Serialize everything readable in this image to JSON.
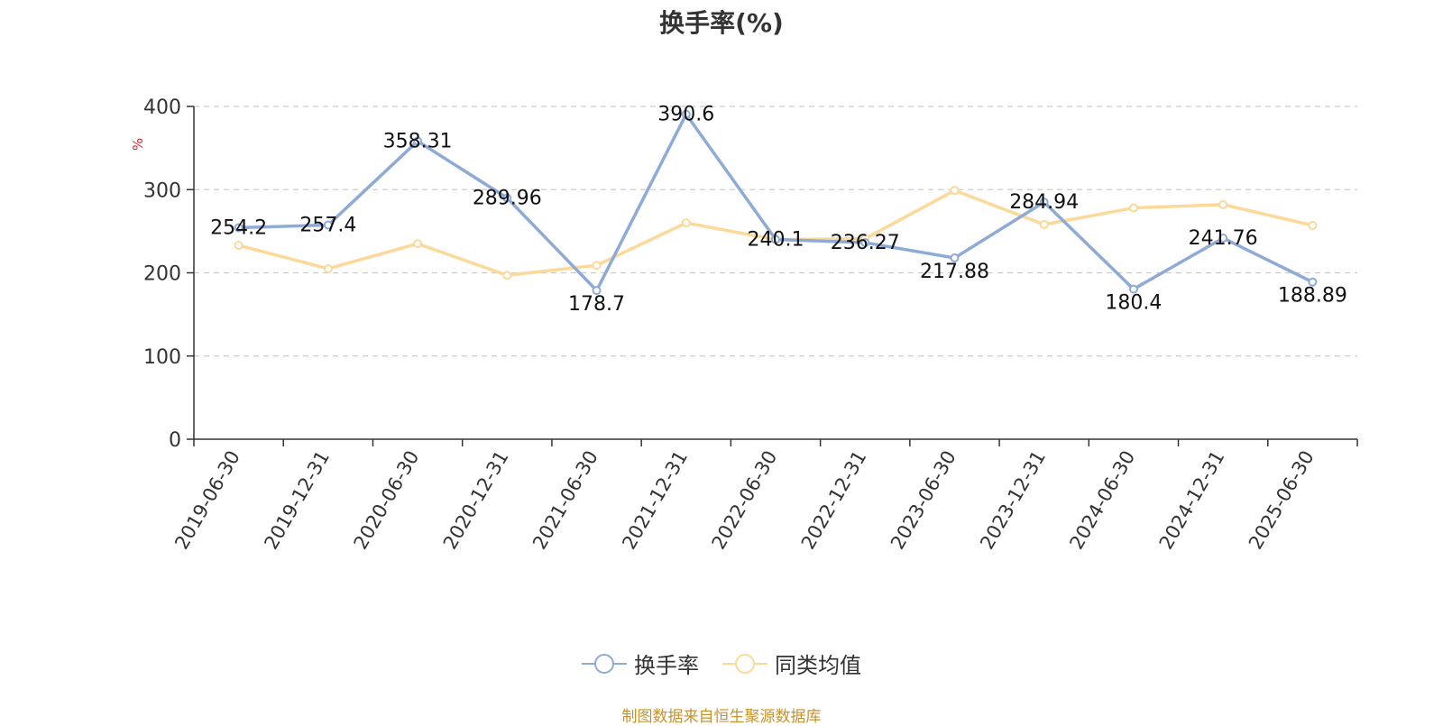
{
  "chart_data": {
    "type": "line",
    "title": "换手率(%)",
    "ylabel": "%",
    "ylim": [
      0,
      400
    ],
    "yticks": [
      0,
      100,
      200,
      300,
      400
    ],
    "grid": true,
    "legend_position": "bottom",
    "categories": [
      "2019-06-30",
      "2019-12-31",
      "2020-06-30",
      "2020-12-31",
      "2021-06-30",
      "2021-12-31",
      "2022-06-30",
      "2022-12-31",
      "2023-06-30",
      "2023-12-31",
      "2024-06-30",
      "2024-12-31",
      "2025-06-30"
    ],
    "series": [
      {
        "name": "换手率",
        "color": "#8eaad6",
        "show_labels": true,
        "values": [
          254.2,
          257.4,
          358.31,
          289.96,
          178.7,
          390.6,
          240.1,
          236.27,
          217.88,
          284.94,
          180.4,
          241.76,
          188.89
        ],
        "labels": [
          "254.2",
          "257.4",
          "358.31",
          "289.96",
          "178.7",
          "390.6",
          "240.1",
          "236.27",
          "217.88",
          "284.94",
          "180.4",
          "241.76",
          "188.89"
        ]
      },
      {
        "name": "同类均值",
        "color": "#fcd899",
        "show_labels": false,
        "values": [
          233,
          205,
          235,
          197,
          209,
          260,
          240,
          241,
          299,
          258,
          278,
          282,
          257
        ]
      }
    ]
  },
  "source_note": "制图数据来自恒生聚源数据库"
}
